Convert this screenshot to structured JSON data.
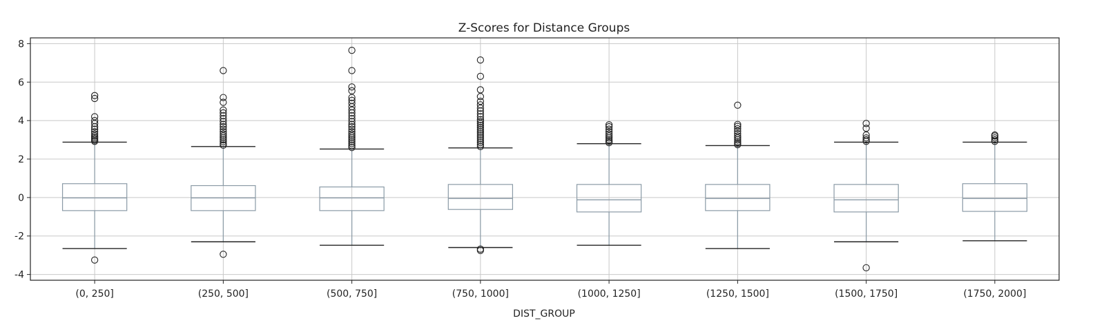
{
  "chart_data": {
    "type": "boxplot",
    "title": "Z-Scores for Distance Groups",
    "xlabel": "DIST_GROUP",
    "ylabel": "",
    "ylim": [
      -4.3,
      8.3
    ],
    "yticks": [
      -4,
      -2,
      0,
      2,
      4,
      6,
      8
    ],
    "grid": true,
    "colors": {
      "box": "#8a9aa6",
      "median": "#8a9aa6",
      "grid": "#c8c8c8",
      "outlier": "#222222",
      "axis": "#222222"
    },
    "categories": [
      "(0, 250]",
      "(250, 500]",
      "(500, 750]",
      "(750, 1000]",
      "(1000, 1250]",
      "(1250, 1500]",
      "(1500, 1750]",
      "(1750, 2000]"
    ],
    "boxes": [
      {
        "category": "(0, 250]",
        "whisker_low": -2.65,
        "q1": -0.68,
        "median": -0.02,
        "q3": 0.72,
        "whisker_high": 2.88,
        "outliers": [
          -3.25,
          2.92,
          2.98,
          3.05,
          3.12,
          3.2,
          3.3,
          3.42,
          3.55,
          3.68,
          3.85,
          4.0,
          4.2,
          5.15,
          5.3
        ]
      },
      {
        "category": "(250, 500]",
        "whisker_low": -2.3,
        "q1": -0.68,
        "median": -0.02,
        "q3": 0.62,
        "whisker_high": 2.65,
        "outliers": [
          -2.95,
          2.72,
          2.8,
          2.9,
          3.0,
          3.1,
          3.2,
          3.3,
          3.42,
          3.55,
          3.68,
          3.8,
          3.95,
          4.1,
          4.25,
          4.4,
          4.55,
          4.95,
          5.2,
          6.6
        ]
      },
      {
        "category": "(500, 750]",
        "whisker_low": -2.48,
        "q1": -0.68,
        "median": -0.02,
        "q3": 0.55,
        "whisker_high": 2.52,
        "outliers": [
          2.6,
          2.7,
          2.8,
          2.9,
          3.0,
          3.1,
          3.2,
          3.3,
          3.42,
          3.55,
          3.68,
          3.8,
          3.95,
          4.1,
          4.25,
          4.4,
          4.55,
          4.72,
          4.9,
          5.05,
          5.2,
          5.55,
          5.75,
          6.6,
          7.65
        ]
      },
      {
        "category": "(750, 1000]",
        "whisker_low": -2.6,
        "q1": -0.62,
        "median": -0.05,
        "q3": 0.68,
        "whisker_high": 2.58,
        "outliers": [
          -2.75,
          -2.68,
          2.65,
          2.75,
          2.85,
          2.95,
          3.05,
          3.15,
          3.25,
          3.35,
          3.45,
          3.55,
          3.65,
          3.75,
          3.85,
          3.95,
          4.05,
          4.2,
          4.35,
          4.5,
          4.65,
          4.82,
          5.0,
          5.25,
          5.6,
          6.3,
          7.15
        ]
      },
      {
        "category": "(1000, 1250]",
        "whisker_low": -2.48,
        "q1": -0.75,
        "median": -0.12,
        "q3": 0.68,
        "whisker_high": 2.8,
        "outliers": [
          2.85,
          2.92,
          3.0,
          3.1,
          3.2,
          3.3,
          3.42,
          3.55,
          3.68,
          3.78
        ]
      },
      {
        "category": "(1250, 1500]",
        "whisker_low": -2.65,
        "q1": -0.68,
        "median": -0.05,
        "q3": 0.68,
        "whisker_high": 2.7,
        "outliers": [
          2.75,
          2.82,
          2.9,
          3.0,
          3.1,
          3.2,
          3.32,
          3.45,
          3.58,
          3.7,
          3.8,
          4.8
        ]
      },
      {
        "category": "(1500, 1750]",
        "whisker_low": -2.3,
        "q1": -0.75,
        "median": -0.12,
        "q3": 0.68,
        "whisker_high": 2.88,
        "outliers": [
          -3.65,
          2.92,
          3.0,
          3.1,
          3.25,
          3.6,
          3.85
        ]
      },
      {
        "category": "(1750, 2000]",
        "whisker_low": -2.25,
        "q1": -0.72,
        "median": -0.05,
        "q3": 0.72,
        "whisker_high": 2.88,
        "outliers": [
          2.92,
          3.0,
          3.1,
          3.2,
          3.25
        ]
      }
    ]
  }
}
